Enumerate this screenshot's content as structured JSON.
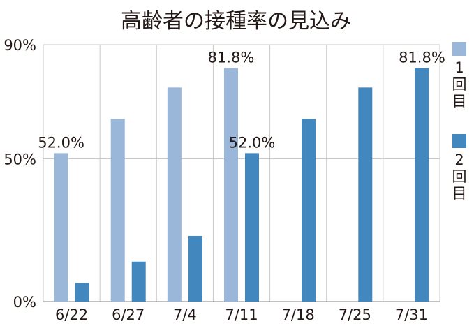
{
  "chart_data": {
    "type": "bar",
    "title": "高齢者の接種率の見込み",
    "categories": [
      "6/22",
      "6/27",
      "7/4",
      "7/11",
      "7/18",
      "7/25",
      "7/31"
    ],
    "series": [
      {
        "name": "1回目",
        "color": "#9ab6d8",
        "values": [
          52.0,
          64.0,
          75.0,
          81.8,
          null,
          null,
          null
        ]
      },
      {
        "name": "2回目",
        "color": "#4387bf",
        "values": [
          6.5,
          14.0,
          23.0,
          52.0,
          64.0,
          75.0,
          81.8
        ]
      }
    ],
    "ylim": [
      0,
      90
    ],
    "yticks": [
      {
        "value": 0,
        "label": "0%"
      },
      {
        "value": 50,
        "label": "50%"
      },
      {
        "value": 90,
        "label": "90%"
      }
    ],
    "data_labels": [
      {
        "series": 0,
        "index": 0,
        "text": "52.0%"
      },
      {
        "series": 0,
        "index": 3,
        "text": "81.8%"
      },
      {
        "series": 1,
        "index": 3,
        "text": "52.0%"
      },
      {
        "series": 1,
        "index": 6,
        "text": "81.8%"
      }
    ],
    "grid": true,
    "legend": "right"
  }
}
